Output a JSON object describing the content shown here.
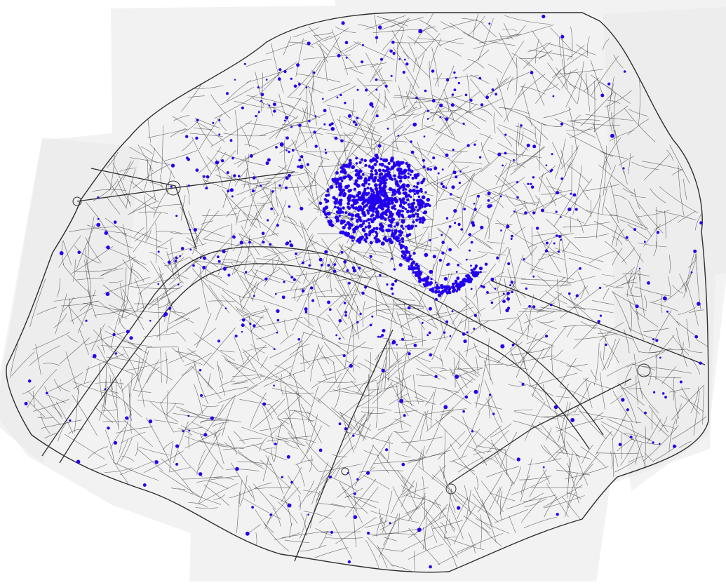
{
  "map": {
    "colors": {
      "background": "#ffffff",
      "paper": "#f2f2f2",
      "paper_shadow": "#e9e9e9",
      "street": "#3c3c3c",
      "major_street": "#2e2e2e",
      "marker": "#2200ee"
    },
    "markers": {
      "description_visible": false
    }
  }
}
